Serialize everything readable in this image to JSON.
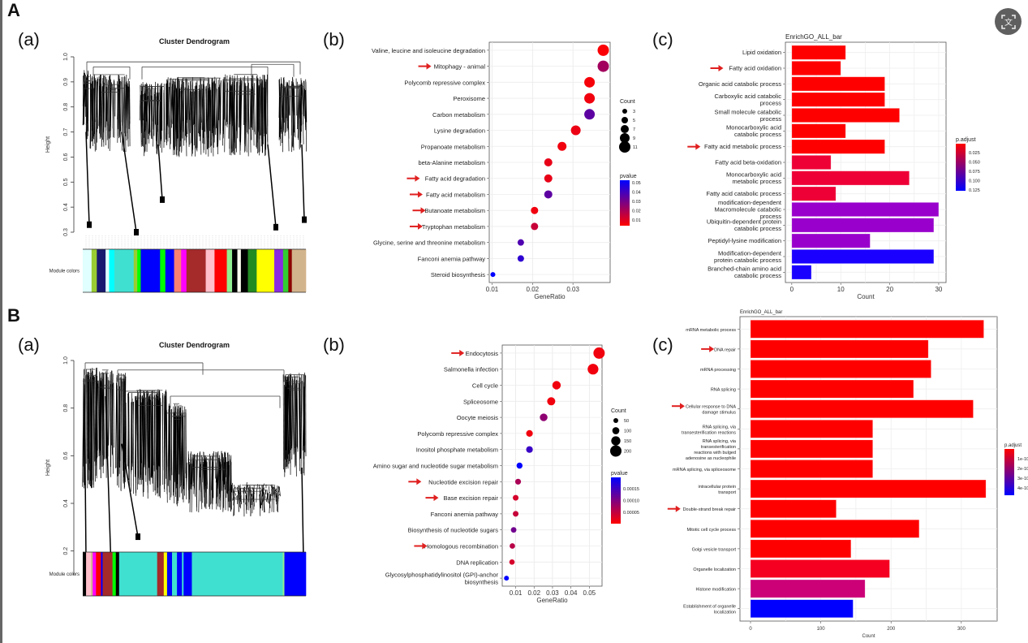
{
  "toolbar": {
    "visual_search_icon": "visual-search"
  },
  "sections": {
    "A": {
      "label": "A"
    },
    "B": {
      "label": "B"
    }
  },
  "panel_labels": {
    "a": "(a)",
    "b": "(b)",
    "c": "(c)"
  },
  "chart_data": [
    {
      "id": "A-a",
      "type": "dendrogram",
      "title": "Cluster Dendrogram",
      "ylabel": "Height",
      "yticks": [
        "0.3",
        "0.4",
        "0.5",
        "0.6",
        "0.7",
        "0.8",
        "0.9",
        "1.0"
      ],
      "ylim": [
        0.3,
        1.0
      ],
      "module_label": "Module colors",
      "module_colors": [
        "#e0ffff",
        "#9acd32",
        "#191970",
        "#e0ffff",
        "#00ffff",
        "#40e0d0",
        "#9acd32",
        "#00ff00",
        "#0000ff",
        "#0000ff",
        "#00ff00",
        "#0000ff",
        "#fa8072",
        "#ff00ff",
        "#a52a2a",
        "#ffc0cb",
        "#ff0000",
        "#90ee90",
        "#000000",
        "#fffff0",
        "#000000",
        "#228b22",
        "#ffff00",
        "#8a2be2",
        "#32cd32",
        "#8b0000",
        "#d2b48c"
      ],
      "module_widths": [
        10,
        6,
        10,
        4,
        6,
        22,
        4,
        4,
        6,
        16,
        6,
        10,
        8,
        6,
        22,
        10,
        14,
        6,
        6,
        4,
        8,
        10,
        20,
        10,
        6,
        4,
        16
      ]
    },
    {
      "id": "A-b",
      "type": "scatter",
      "xlabel": "GeneRatio",
      "xticks": [
        "0.01",
        "0.02",
        "0.03"
      ],
      "xlim": [
        0.0093,
        0.0392
      ],
      "categories": [
        "Valine, leucine and isoleucine degradation",
        "Mitophagy - animal",
        "Polycomb repressive complex",
        "Peroxisome",
        "Carbon metabolism",
        "Lysine degradation",
        "Propanoate metabolism",
        "beta-Alanine metabolism",
        "Fatty acid degradation",
        "Fatty acid metabolism",
        "Butanoate metabolism",
        "Tryptophan metabolism",
        "Glycine, serine and threonine metabolism",
        "Fanconi anemia pathway",
        "Steroid biosynthesis"
      ],
      "arrows": [
        false,
        true,
        false,
        false,
        false,
        false,
        false,
        false,
        true,
        true,
        true,
        true,
        false,
        false,
        false
      ],
      "gene_ratio": [
        0.0375,
        0.0375,
        0.0341,
        0.0341,
        0.0341,
        0.0307,
        0.0273,
        0.0239,
        0.0239,
        0.0239,
        0.0205,
        0.0205,
        0.0171,
        0.0171,
        0.0102
      ],
      "count": [
        11,
        11,
        10,
        10,
        10,
        9,
        8,
        7,
        7,
        7,
        6,
        6,
        5,
        5,
        3
      ],
      "pvalue": [
        0.001,
        0.02,
        0.002,
        0.003,
        0.035,
        0.004,
        0.003,
        0.005,
        0.005,
        0.035,
        0.003,
        0.012,
        0.038,
        0.045,
        0.055
      ],
      "size_legend": {
        "title": "Count",
        "values": [
          3,
          5,
          7,
          9,
          11
        ]
      },
      "color_legend": {
        "title": "pvalue",
        "ticks": [
          "0.05",
          "0.04",
          "0.03",
          "0.02",
          "0.01"
        ],
        "low_color": "#ff0000",
        "high_color": "#0000ff"
      }
    },
    {
      "id": "A-c",
      "type": "bar",
      "title": "EnrichGO_ALL_bar",
      "xlabel": "Count",
      "xticks": [
        "0",
        "10",
        "20",
        "30"
      ],
      "xlim": [
        -1.3,
        31.5
      ],
      "categories": [
        [
          "Lipid oxidation"
        ],
        [
          "Fatty acid oxidation"
        ],
        [
          "Organic acid catabolic process"
        ],
        [
          "Carboxylic acid catabolic",
          "process"
        ],
        [
          "Small molecule catabolic",
          "process"
        ],
        [
          "Monocarboxylic acid",
          "catabolic process"
        ],
        [
          "Fatty acid metabolic process"
        ],
        [
          "Fatty acid beta-oxidation"
        ],
        [
          "Monocarboxylic acid",
          "metabolic process"
        ],
        [
          "Fatty acid catabolic process"
        ],
        [
          "modification-dependent",
          "Macromolecule catabolic",
          "process"
        ],
        [
          "Ubiquitin-dependent protein",
          "catabolic process"
        ],
        [
          "Peptidyl-lysine modification"
        ],
        [
          "Modification-dependent",
          "protein catabolic process"
        ],
        [
          "Branched-chain amino acid",
          "catabolic process"
        ]
      ],
      "arrows": [
        false,
        true,
        false,
        false,
        false,
        false,
        true,
        false,
        false,
        false,
        false,
        false,
        false,
        false,
        false
      ],
      "values": [
        11,
        10,
        19,
        19,
        22,
        11,
        19,
        8,
        24,
        9,
        30,
        29,
        16,
        29,
        4
      ],
      "colors": [
        "#ff0000",
        "#ff0000",
        "#ff0000",
        "#ff0000",
        "#ff0000",
        "#ff0000",
        "#ff0000",
        "#ee0036",
        "#ee0036",
        "#ee0036",
        "#9900cc",
        "#9900cc",
        "#9900cc",
        "#1a00ff",
        "#1a00ff"
      ],
      "color_legend": {
        "title": "p.adjust",
        "ticks": [
          "0.025",
          "0.050",
          "0.075",
          "0.100",
          "0.125"
        ],
        "low_color": "#ff0000",
        "high_color": "#0000ff"
      }
    },
    {
      "id": "B-a",
      "type": "dendrogram",
      "title": "Cluster Dendrogram",
      "ylabel": "Height",
      "yticks": [
        "0.2",
        "0.4",
        "0.6",
        "0.8",
        "1.0"
      ],
      "ylim": [
        0.1,
        1.0
      ],
      "module_label": "Module colors",
      "module_colors": [
        "#000000",
        "#ffc0cb",
        "#d2b48c",
        "#ff00ff",
        "#ff0000",
        "#0000ff",
        "#a52a2a",
        "#00ff00",
        "#000000",
        "#40e0d0",
        "#a52a2a",
        "#ffff00",
        "#0000ff",
        "#40e0d0",
        "#0000ff",
        "#40e0d0",
        "#0000ff",
        "#40e0d0",
        "#90ee90",
        "#0000ff"
      ],
      "module_widths": [
        4,
        6,
        2,
        4,
        6,
        2,
        12,
        4,
        4,
        46,
        8,
        4,
        6,
        6,
        6,
        2,
        10,
        110,
        2,
        26
      ]
    },
    {
      "id": "B-b",
      "type": "scatter",
      "xlabel": "GeneRatio",
      "xticks": [
        "0.01",
        "0.02",
        "0.03",
        "0.04",
        "0.05"
      ],
      "xlim": [
        0.0027,
        0.0569
      ],
      "categories": [
        [
          "Endocytosis"
        ],
        [
          "Salmonella infection"
        ],
        [
          "Cell cycle"
        ],
        [
          "Spliceosome"
        ],
        [
          "Oocyte meiosis"
        ],
        [
          "Polycomb repressive complex"
        ],
        [
          "Inositol phosphate metabolism"
        ],
        [
          "Amino sugar and nucleotide sugar metabolism"
        ],
        [
          "Nucleotide excision repair"
        ],
        [
          "Base excision repair"
        ],
        [
          "Fanconi anemia pathway"
        ],
        [
          "Biosynthesis of nucleotide sugars"
        ],
        [
          "Homologous recombination"
        ],
        [
          "DNA replication"
        ],
        [
          "Glycosylphosphatidylinositol (GPI)-anchor",
          "biosynthesis"
        ]
      ],
      "arrows": [
        true,
        false,
        false,
        false,
        false,
        false,
        false,
        false,
        true,
        true,
        false,
        false,
        true,
        false,
        false
      ],
      "gene_ratio": [
        0.0553,
        0.052,
        0.0322,
        0.0293,
        0.0252,
        0.0175,
        0.0175,
        0.0121,
        0.0113,
        0.01,
        0.01,
        0.0089,
        0.0082,
        0.008,
        0.005
      ],
      "count": [
        220,
        200,
        130,
        120,
        105,
        75,
        75,
        55,
        50,
        45,
        45,
        40,
        38,
        37,
        20
      ],
      "pvalue": [
        1e-05,
        1e-05,
        1e-05,
        1e-05,
        8e-05,
        1e-05,
        0.00014,
        0.00018,
        6e-05,
        3e-05,
        4e-05,
        0.0001,
        5e-05,
        3e-05,
        0.00018
      ],
      "size_legend": {
        "title": "Count",
        "values": [
          50,
          100,
          150,
          200
        ]
      },
      "color_legend": {
        "title": "pvalue",
        "ticks": [
          "0.00015",
          "0.00010",
          "0.00005"
        ],
        "low_color": "#ff0000",
        "high_color": "#0000ff"
      }
    },
    {
      "id": "B-c",
      "type": "bar",
      "title": "EnrichGO_ALL_bar",
      "xlabel": "Count",
      "xticks": [
        "0",
        "100",
        "200",
        "300"
      ],
      "xlim": [
        -15,
        351
      ],
      "categories": [
        [
          "mRNA metabolic process"
        ],
        [
          "DNA repair"
        ],
        [
          "mRNA processing"
        ],
        [
          "RNA splicing"
        ],
        [
          "Cellular response to DNA",
          "damage stimulus"
        ],
        [
          "RNA splicing, via",
          "transesterification reactions"
        ],
        [
          "RNA splicing, via",
          "transesterification",
          "reactions with bulged",
          "adenosine as nucleophile"
        ],
        [
          "mRNA splicing, via spliceosome"
        ],
        [
          "intracellular protein",
          "transport"
        ],
        [
          "Double-strand break repair"
        ],
        [
          "Mitotic cell cycle process"
        ],
        [
          "Golgi vesicle transport"
        ],
        [
          "Organelle localization"
        ],
        [
          "Histone modification"
        ],
        [
          "Establishment of organelle",
          "localization"
        ]
      ],
      "arrows": [
        false,
        true,
        false,
        false,
        true,
        false,
        false,
        false,
        false,
        true,
        false,
        false,
        false,
        false,
        false
      ],
      "values": [
        332,
        253,
        257,
        232,
        317,
        174,
        174,
        174,
        335,
        122,
        240,
        143,
        198,
        163,
        146
      ],
      "colors": [
        "#ff0000",
        "#ff0000",
        "#ff0000",
        "#ff0000",
        "#ff0000",
        "#ff0000",
        "#ff0000",
        "#ff0000",
        "#ff0000",
        "#ff0000",
        "#ff0000",
        "#ff0000",
        "#f50020",
        "#cc0077",
        "#0000ff"
      ],
      "color_legend": {
        "title": "p.adjust",
        "ticks": [
          "1e-10",
          "2e-10",
          "3e-10",
          "4e-10"
        ],
        "low_color": "#ff0000",
        "high_color": "#0000ff"
      }
    }
  ]
}
